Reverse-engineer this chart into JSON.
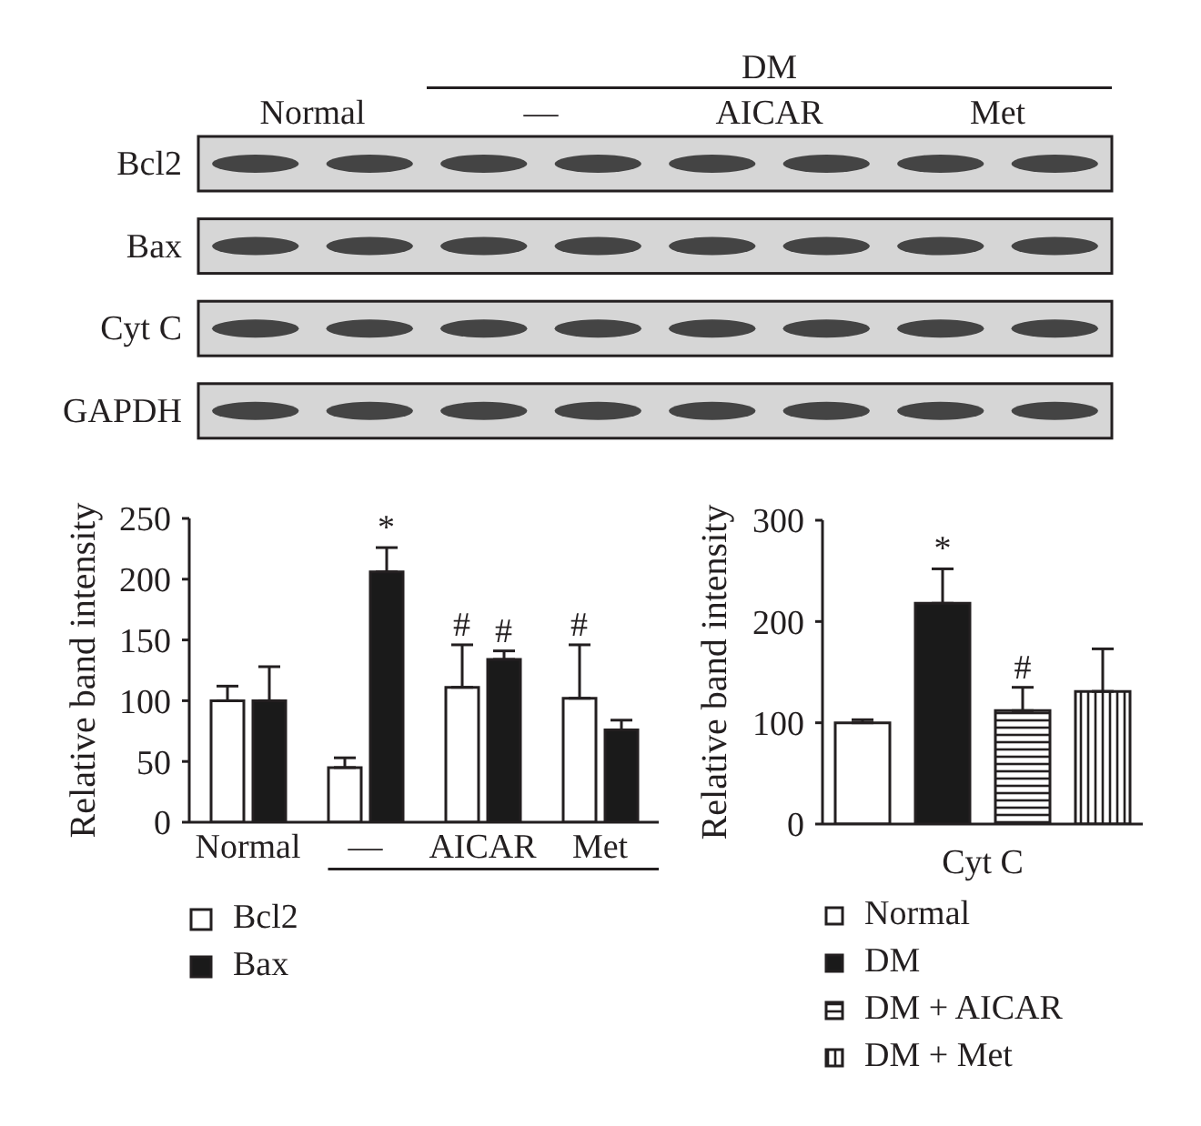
{
  "chart_data": [
    {
      "type": "other",
      "categories": [
        "Normal",
        "—",
        "AICAR",
        "Met"
      ],
      "y_categories": [
        "Bcl2",
        "Bax",
        "Cyt C",
        "GAPDH"
      ],
      "annotations": [
        "DM"
      ]
    },
    {
      "type": "bar",
      "categories": [
        "Normal",
        "—",
        "AICAR",
        "Met"
      ],
      "ylabel": "Relative band intensity",
      "ylim": [
        0,
        250
      ],
      "yticks": [
        0,
        50,
        100,
        150,
        200,
        250
      ],
      "legend": "bottom",
      "series": [
        {
          "name": "Bcl2",
          "color": "#ffffff",
          "values": [
            100,
            45,
            111,
            102
          ],
          "errors": [
            [
              100,
              112
            ],
            [
              45,
              53
            ],
            [
              111,
              146
            ],
            [
              102,
              146
            ]
          ]
        },
        {
          "name": "Bax",
          "color": "#1a1a1a",
          "values": [
            100,
            206,
            134,
            76
          ],
          "errors": [
            [
              100,
              128
            ],
            [
              206,
              226
            ],
            [
              134,
              141
            ],
            [
              76,
              84
            ]
          ]
        }
      ],
      "annotations": [
        {
          "text": "*",
          "x": "—",
          "y": 206
        },
        {
          "text": "#",
          "x": "AICAR",
          "y": 111
        },
        {
          "text": "#",
          "x": "AICAR",
          "y": 134
        },
        {
          "text": "#",
          "x": "Met",
          "y": 102
        }
      ]
    },
    {
      "type": "bar",
      "categories": [
        null,
        null,
        null,
        null
      ],
      "xlabel": "Cyt C",
      "ylabel": "Relative band intensity",
      "ylim": [
        0,
        300
      ],
      "yticks": [
        0,
        100,
        200,
        300
      ],
      "legend": "bottom",
      "series": [
        {
          "name": "Normal",
          "color": "#ffffff",
          "values": [
            100,
            null,
            null,
            null
          ],
          "errors": [
            [
              100,
              103
            ],
            null,
            null,
            null
          ]
        },
        {
          "name": "DM",
          "color": "#1a1a1a",
          "values": [
            null,
            218,
            null,
            null
          ],
          "errors": [
            null,
            [
              218,
              252
            ],
            null,
            null
          ]
        },
        {
          "name": "DM + AICAR",
          "color": "#231f20",
          "values": [
            null,
            null,
            112,
            null
          ],
          "errors": [
            null,
            null,
            [
              112,
              135
            ],
            null
          ]
        },
        {
          "name": "DM + Met",
          "color": "#231f20",
          "values": [
            null,
            null,
            null,
            131
          ],
          "errors": [
            null,
            null,
            null,
            [
              131,
              173
            ]
          ]
        }
      ],
      "annotations": [
        {
          "text": "*",
          "y": 218
        },
        {
          "text": "#",
          "y": 112
        }
      ]
    }
  ]
}
